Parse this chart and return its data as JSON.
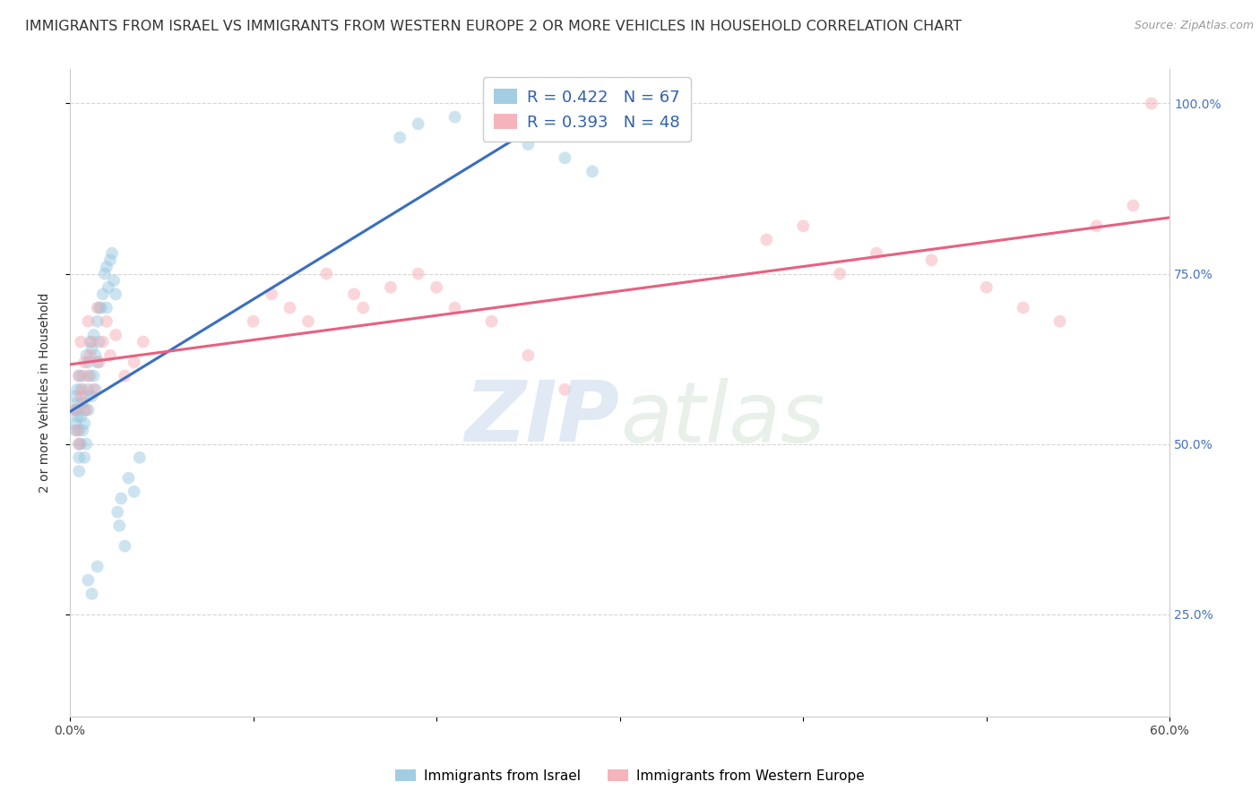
{
  "title": "IMMIGRANTS FROM ISRAEL VS IMMIGRANTS FROM WESTERN EUROPE 2 OR MORE VEHICLES IN HOUSEHOLD CORRELATION CHART",
  "source": "Source: ZipAtlas.com",
  "ylabel": "2 or more Vehicles in Household",
  "xlim": [
    0.0,
    0.6
  ],
  "ylim": [
    0.1,
    1.05
  ],
  "xtick_positions": [
    0.0,
    0.1,
    0.2,
    0.3,
    0.4,
    0.5,
    0.6
  ],
  "xticklabels": [
    "0.0%",
    "",
    "",
    "",
    "",
    "",
    "60.0%"
  ],
  "ytick_positions": [
    0.25,
    0.5,
    0.75,
    1.0
  ],
  "ytick_right_labels": [
    "25.0%",
    "50.0%",
    "75.0%",
    "100.0%"
  ],
  "R_israel": 0.422,
  "N_israel": 67,
  "R_western": 0.393,
  "N_western": 48,
  "israel_color": "#92C5DE",
  "western_color": "#F4A6B0",
  "israel_line_color": "#3A6EBF",
  "western_line_color": "#E86080",
  "legend_label_israel": "Immigrants from Israel",
  "legend_label_western": "Immigrants from Western Europe",
  "israel_x": [
    0.003,
    0.004,
    0.003,
    0.003,
    0.004,
    0.003,
    0.004,
    0.005,
    0.005,
    0.004,
    0.005,
    0.005,
    0.006,
    0.005,
    0.006,
    0.006,
    0.007,
    0.007,
    0.007,
    0.008,
    0.008,
    0.008,
    0.009,
    0.009,
    0.009,
    0.01,
    0.01,
    0.01,
    0.011,
    0.011,
    0.012,
    0.012,
    0.013,
    0.013,
    0.014,
    0.014,
    0.015,
    0.015,
    0.016,
    0.016,
    0.017,
    0.018,
    0.019,
    0.02,
    0.02,
    0.021,
    0.022,
    0.023,
    0.024,
    0.025,
    0.026,
    0.027,
    0.028,
    0.03,
    0.032,
    0.035,
    0.038,
    0.18,
    0.19,
    0.21,
    0.23,
    0.25,
    0.27,
    0.285,
    0.01,
    0.012,
    0.015
  ],
  "israel_y": [
    0.57,
    0.58,
    0.55,
    0.53,
    0.54,
    0.52,
    0.56,
    0.6,
    0.5,
    0.55,
    0.48,
    0.52,
    0.54,
    0.46,
    0.58,
    0.5,
    0.56,
    0.6,
    0.52,
    0.55,
    0.48,
    0.53,
    0.57,
    0.5,
    0.63,
    0.62,
    0.58,
    0.55,
    0.65,
    0.6,
    0.64,
    0.57,
    0.66,
    0.6,
    0.63,
    0.58,
    0.68,
    0.62,
    0.7,
    0.65,
    0.7,
    0.72,
    0.75,
    0.76,
    0.7,
    0.73,
    0.77,
    0.78,
    0.74,
    0.72,
    0.4,
    0.38,
    0.42,
    0.35,
    0.45,
    0.43,
    0.48,
    0.95,
    0.97,
    0.98,
    0.96,
    0.94,
    0.92,
    0.9,
    0.3,
    0.28,
    0.32
  ],
  "western_x": [
    0.003,
    0.004,
    0.005,
    0.005,
    0.006,
    0.006,
    0.007,
    0.008,
    0.009,
    0.01,
    0.01,
    0.011,
    0.012,
    0.013,
    0.015,
    0.016,
    0.018,
    0.02,
    0.022,
    0.025,
    0.03,
    0.035,
    0.04,
    0.1,
    0.11,
    0.12,
    0.13,
    0.14,
    0.155,
    0.16,
    0.175,
    0.19,
    0.2,
    0.21,
    0.23,
    0.25,
    0.27,
    0.38,
    0.4,
    0.42,
    0.44,
    0.47,
    0.5,
    0.52,
    0.54,
    0.56,
    0.58,
    0.59
  ],
  "western_y": [
    0.55,
    0.52,
    0.6,
    0.5,
    0.65,
    0.57,
    0.58,
    0.62,
    0.55,
    0.6,
    0.68,
    0.63,
    0.65,
    0.58,
    0.7,
    0.62,
    0.65,
    0.68,
    0.63,
    0.66,
    0.6,
    0.62,
    0.65,
    0.68,
    0.72,
    0.7,
    0.68,
    0.75,
    0.72,
    0.7,
    0.73,
    0.75,
    0.73,
    0.7,
    0.68,
    0.63,
    0.58,
    0.8,
    0.82,
    0.75,
    0.78,
    0.77,
    0.73,
    0.7,
    0.68,
    0.82,
    0.85,
    1.0
  ],
  "background_color": "#FFFFFF",
  "grid_color": "#CCCCCC",
  "title_fontsize": 11.5,
  "axis_fontsize": 10,
  "tick_fontsize": 10,
  "marker_size": 100,
  "marker_alpha": 0.45
}
